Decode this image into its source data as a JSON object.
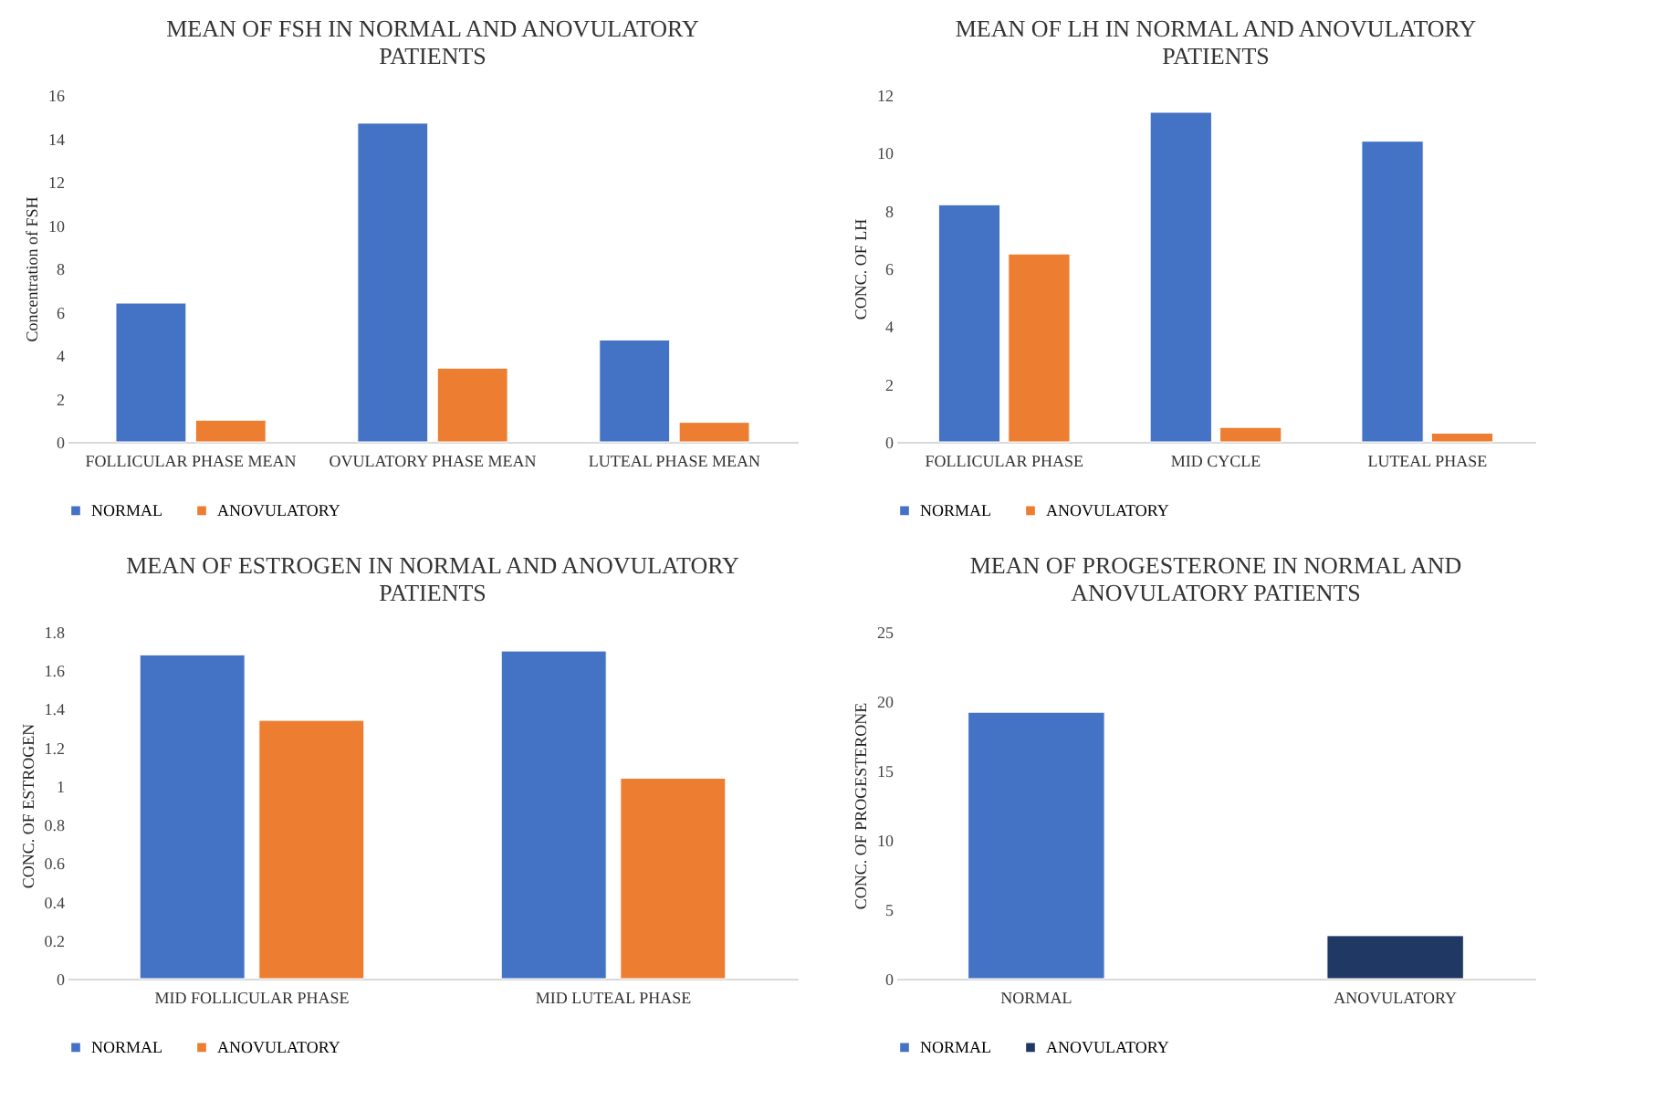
{
  "chart_data": [
    {
      "type": "bar",
      "title": "MEAN OF FSH IN NORMAL AND ANOVULATORY PATIENTS",
      "ylabel": "Concentration of FSH",
      "categories": [
        "FOLLICULAR PHASE MEAN",
        "OVULATORY PHASE MEAN",
        "LUTEAL PHASE MEAN"
      ],
      "series": [
        {
          "name": "NORMAL",
          "color": "#4472c4",
          "values": [
            6.4,
            14.7,
            4.7
          ]
        },
        {
          "name": "ANOVULATORY",
          "color": "#ed7d31",
          "values": [
            1.0,
            3.4,
            0.9
          ]
        }
      ],
      "ylim": [
        0,
        16
      ],
      "yticks": [
        0,
        2,
        4,
        6,
        8,
        10,
        12,
        14,
        16
      ],
      "legend": "bottom"
    },
    {
      "type": "bar",
      "title": "MEAN OF LH IN NORMAL AND ANOVULATORY PATIENTS",
      "ylabel": "CONC. OF LH",
      "categories": [
        "FOLLICULAR PHASE",
        "MID CYCLE",
        "LUTEAL PHASE"
      ],
      "series": [
        {
          "name": "NORMAL",
          "color": "#4472c4",
          "values": [
            8.2,
            11.4,
            10.4
          ]
        },
        {
          "name": "ANOVULATORY",
          "color": "#ed7d31",
          "values": [
            6.5,
            0.5,
            0.3
          ]
        }
      ],
      "ylim": [
        0,
        12
      ],
      "yticks": [
        0,
        2,
        4,
        6,
        8,
        10,
        12
      ],
      "legend": "bottom"
    },
    {
      "type": "bar",
      "title": "MEAN OF ESTROGEN IN NORMAL AND ANOVULATORY PATIENTS",
      "ylabel": "CONC. OF ESTROGEN",
      "categories": [
        "MID FOLLICULAR PHASE",
        "MID LUTEAL PHASE"
      ],
      "series": [
        {
          "name": "NORMAL",
          "color": "#4472c4",
          "values": [
            1.68,
            1.7
          ]
        },
        {
          "name": "ANOVULATORY",
          "color": "#ed7d31",
          "values": [
            1.34,
            1.04
          ]
        }
      ],
      "ylim": [
        0,
        1.8
      ],
      "yticks": [
        0,
        0.2,
        0.4,
        0.6,
        0.8,
        1,
        1.2,
        1.4,
        1.6,
        1.8
      ],
      "legend": "bottom"
    },
    {
      "type": "bar",
      "title": "MEAN OF PROGESTERONE IN NORMAL AND ANOVULATORY PATIENTS",
      "ylabel": "CONC. OF PROGESTERONE",
      "categories": [
        "NORMAL",
        "ANOVULATORY"
      ],
      "series": [
        {
          "name": "NORMAL",
          "color": "#4472c4",
          "values": [
            19.2,
            null
          ]
        },
        {
          "name": "ANOVULATORY",
          "color": "#203864",
          "values": [
            null,
            3.1
          ]
        }
      ],
      "ylim": [
        0,
        25
      ],
      "yticks": [
        0,
        5,
        10,
        15,
        20,
        25
      ],
      "legend": "bottom"
    }
  ]
}
